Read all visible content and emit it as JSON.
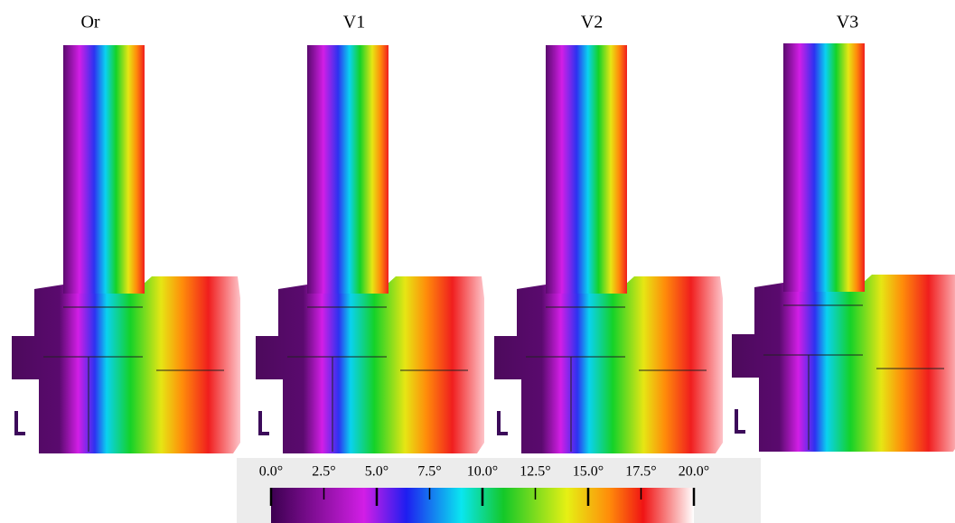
{
  "panels": [
    {
      "label": "Or"
    },
    {
      "label": "V1"
    },
    {
      "label": "V2"
    },
    {
      "label": "V3"
    }
  ],
  "colorbar": {
    "range": [
      0,
      20
    ],
    "ticks": [
      {
        "value": 0,
        "label": "0.0°"
      },
      {
        "value": 2.5,
        "label": "2.5°"
      },
      {
        "value": 5,
        "label": "5.0°"
      },
      {
        "value": 7.5,
        "label": "7.5°"
      },
      {
        "value": 10,
        "label": "10.0°"
      },
      {
        "value": 12.5,
        "label": "12.5°"
      },
      {
        "value": 15,
        "label": "15.0°"
      },
      {
        "value": 17.5,
        "label": "17.5°"
      },
      {
        "value": 20,
        "label": "20.0°"
      }
    ]
  }
}
